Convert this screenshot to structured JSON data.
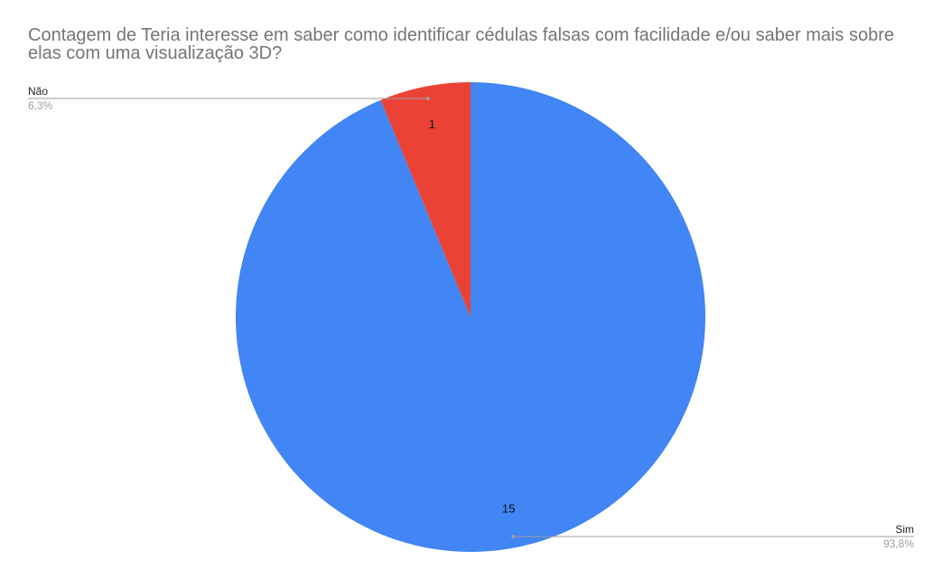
{
  "chart_data": {
    "type": "pie",
    "title": "Contagem de Teria interesse em saber como identificar cédulas falsas com facilidade e/ou saber mais sobre elas com uma visualização 3D?",
    "slices": [
      {
        "label": "Sim",
        "value": 15,
        "percent_label": "93,8%",
        "color": "#4285f4"
      },
      {
        "label": "Não",
        "value": 1,
        "percent_label": "6,3%",
        "color": "#ea4335"
      }
    ]
  }
}
